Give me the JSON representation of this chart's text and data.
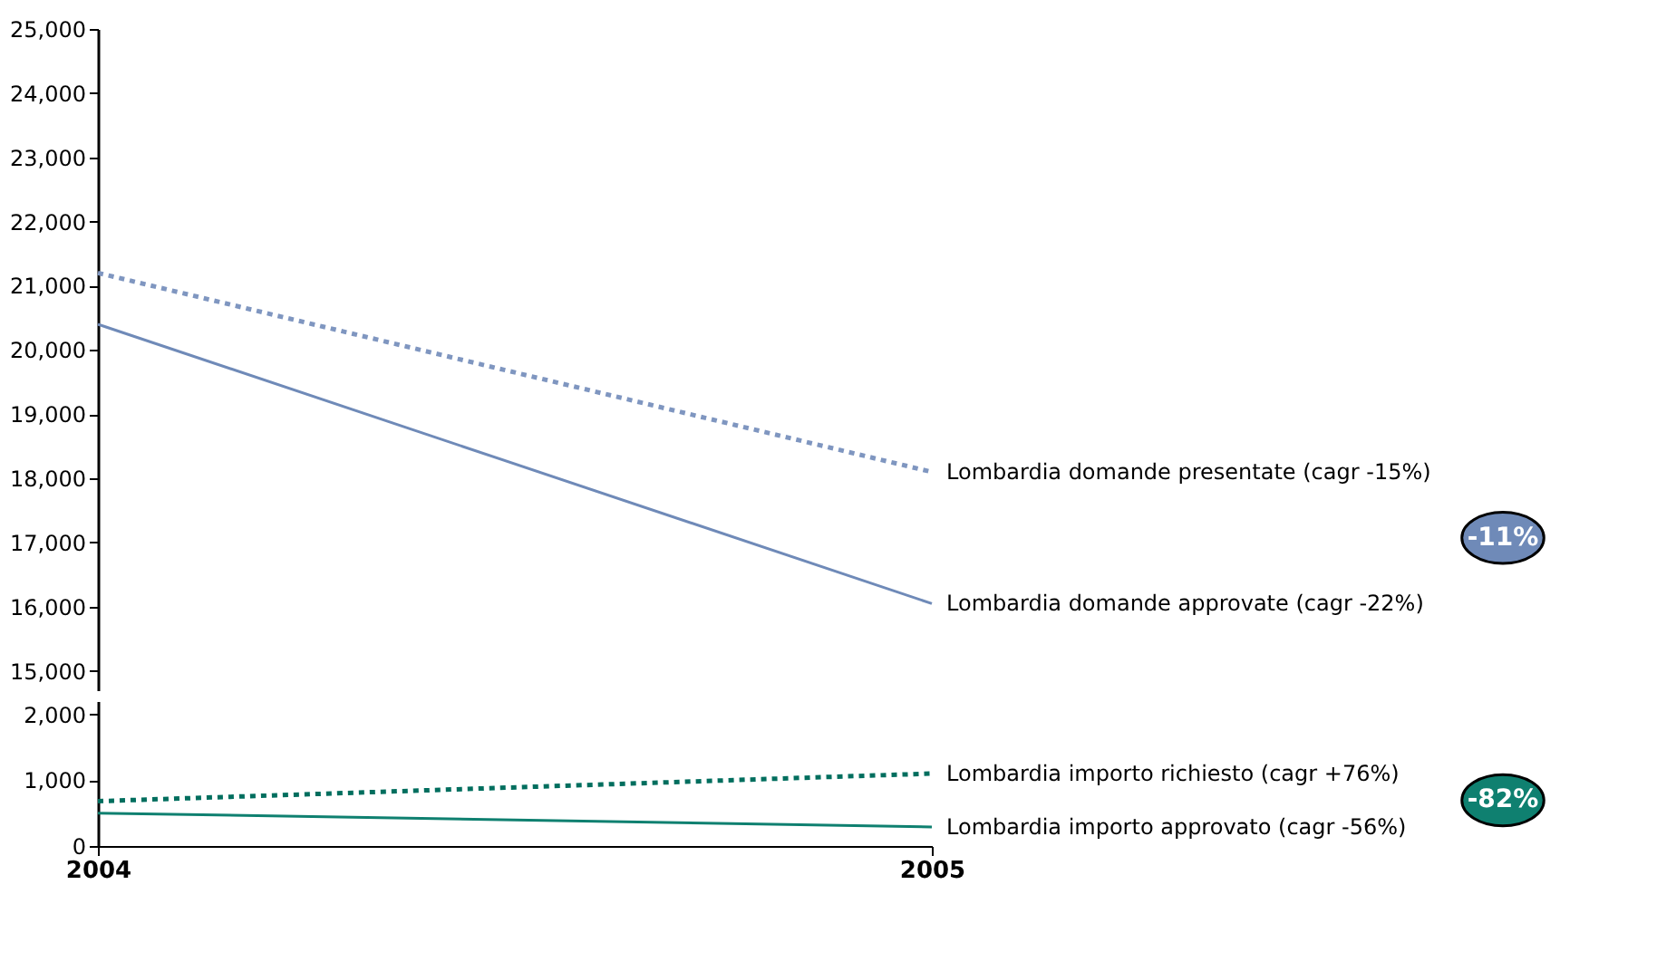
{
  "chart_data": [
    {
      "type": "line",
      "categories": [
        "2004",
        "2005"
      ],
      "ylim": [
        14700,
        25000
      ],
      "yticks": [
        {
          "value": 15000,
          "label": "15,000"
        },
        {
          "value": 16000,
          "label": "16,000"
        },
        {
          "value": 17000,
          "label": "17,000"
        },
        {
          "value": 18000,
          "label": "18,000"
        },
        {
          "value": 19000,
          "label": "19,000"
        },
        {
          "value": 20000,
          "label": "20,000"
        },
        {
          "value": 21000,
          "label": "21,000"
        },
        {
          "value": 22000,
          "label": "22,000"
        },
        {
          "value": 23000,
          "label": "23,000"
        },
        {
          "value": 24000,
          "label": "24,000"
        },
        {
          "value": 25000,
          "label": "25,000"
        }
      ],
      "tick_labels": "y",
      "legend": false,
      "grid": false,
      "marker": "none",
      "series": [
        {
          "name": "Lombardia domande presentate (cagr -15%)",
          "color": "#7f96c0",
          "line_style": "dotted",
          "values": [
            21200,
            18100
          ]
        },
        {
          "name": "Lombardia domande approvate (cagr -22%)",
          "color": "#6f8ab8",
          "line_style": "solid",
          "values": [
            20400,
            16050
          ]
        }
      ],
      "annotations": [
        "-11%"
      ]
    },
    {
      "type": "line",
      "categories": [
        "2004",
        "2005"
      ],
      "ylim": [
        0,
        2200
      ],
      "yticks": [
        0,
        {
          "value": 1000,
          "label": "1,000"
        },
        {
          "value": 2000,
          "label": "2,000"
        }
      ],
      "legend": false,
      "grid": false,
      "marker": "none",
      "series": [
        {
          "name": "Lombardia importo richiesto (cagr +76%)",
          "color": "#006e5e",
          "line_style": "dotted",
          "values": [
            680,
            1100
          ]
        },
        {
          "name": "Lombardia importo approvato (cagr -56%)",
          "color": "#0f8070",
          "line_style": "solid",
          "values": [
            500,
            290
          ]
        }
      ],
      "annotations": [
        "-82%"
      ]
    }
  ]
}
